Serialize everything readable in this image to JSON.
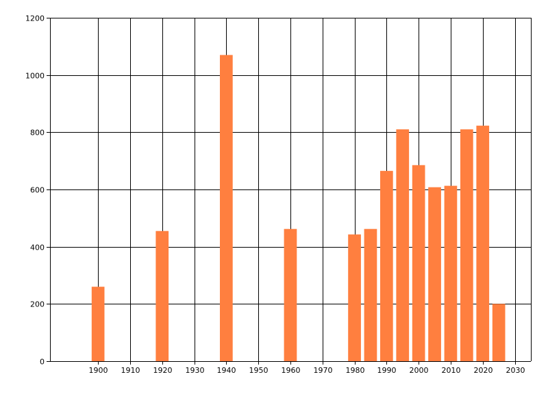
{
  "chart_data": {
    "type": "bar",
    "title": "",
    "xlabel": "",
    "ylabel": "",
    "x": [
      1900,
      1920,
      1940,
      1960,
      1980,
      1985,
      1990,
      1995,
      2000,
      2005,
      2010,
      2015,
      2020,
      2025
    ],
    "values": [
      260,
      455,
      1070,
      462,
      443,
      462,
      665,
      810,
      685,
      608,
      613,
      810,
      823,
      200
    ],
    "xlim": [
      1885,
      2035
    ],
    "ylim": [
      0,
      1200
    ],
    "x_ticks": [
      1900,
      1910,
      1920,
      1930,
      1940,
      1950,
      1960,
      1970,
      1980,
      1990,
      2000,
      2010,
      2020,
      2030
    ],
    "y_ticks": [
      0,
      200,
      400,
      600,
      800,
      1000,
      1200
    ],
    "bar_width_years": 4,
    "grid": true,
    "legend": "none",
    "colors": {
      "bar": "#ff7f3f",
      "grid": "#000000",
      "background": "#ffffff"
    }
  }
}
